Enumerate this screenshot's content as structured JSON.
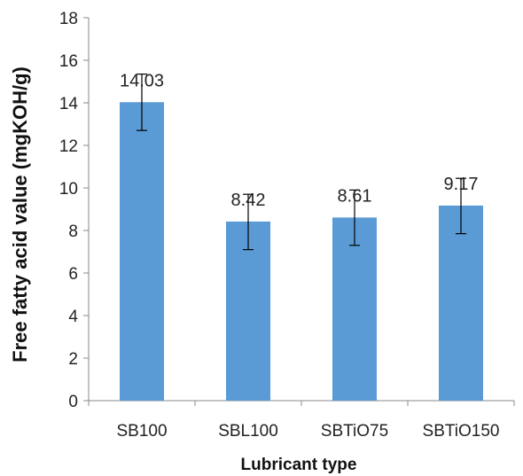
{
  "chart_data": {
    "type": "bar",
    "title": "",
    "xlabel": "Lubricant type",
    "ylabel": "Free fatty acid value (mgKOH/g)",
    "categories": [
      "SB100",
      "SBL100",
      "SBTiO75",
      "SBTiO150"
    ],
    "values": [
      14.03,
      8.42,
      8.61,
      9.17
    ],
    "data_labels": [
      "14.03",
      "8.42",
      "8.61",
      "9.17"
    ],
    "error_low": [
      12.7,
      7.1,
      7.3,
      7.85
    ],
    "error_high": [
      15.35,
      9.7,
      9.9,
      10.45
    ],
    "ylim": [
      0,
      18
    ],
    "yticks": [
      0,
      2,
      4,
      6,
      8,
      10,
      12,
      14,
      16,
      18
    ],
    "ytick_labels": [
      "0",
      "2",
      "4",
      "6",
      "8",
      "10",
      "12",
      "14",
      "16",
      "18"
    ],
    "grid": false,
    "legend": "none",
    "bar_color": "#5B9BD5"
  }
}
